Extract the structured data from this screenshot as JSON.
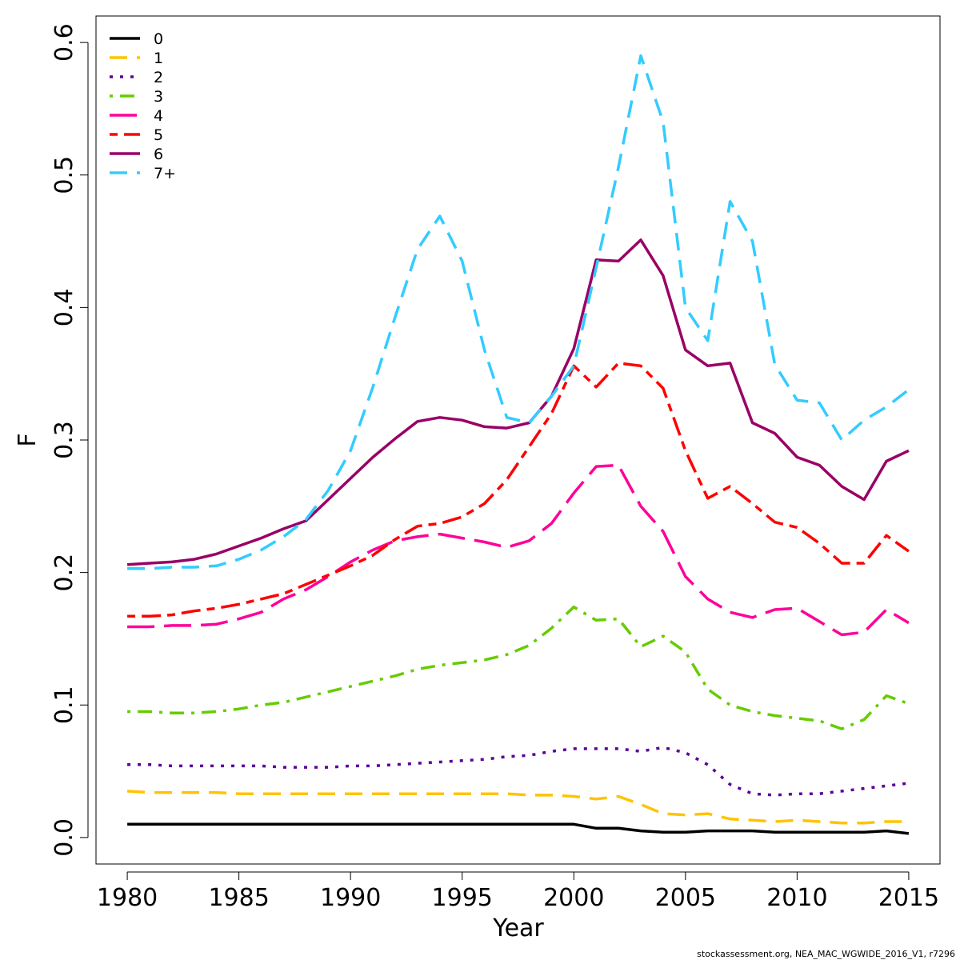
{
  "chart_data": {
    "type": "line",
    "xlabel": "Year",
    "ylabel": "F",
    "xlim": [
      1978.6,
      2016.4
    ],
    "ylim": [
      -0.02,
      0.62
    ],
    "xticks": [
      1980,
      1985,
      1990,
      1995,
      2000,
      2005,
      2010,
      2015
    ],
    "xtick_labels": [
      "1980",
      "1985",
      "1990",
      "1995",
      "2000",
      "2005",
      "2010",
      "2015"
    ],
    "yticks": [
      0.0,
      0.1,
      0.2,
      0.3,
      0.4,
      0.5,
      0.6
    ],
    "ytick_labels": [
      "0.0",
      "0.1",
      "0.2",
      "0.3",
      "0.4",
      "0.5",
      "0.6"
    ],
    "grid": false,
    "legend_position": "top-left",
    "x": [
      1980,
      1981,
      1982,
      1983,
      1984,
      1985,
      1986,
      1987,
      1988,
      1989,
      1990,
      1991,
      1992,
      1993,
      1994,
      1995,
      1996,
      1997,
      1998,
      1999,
      2000,
      2001,
      2002,
      2003,
      2004,
      2005,
      2006,
      2007,
      2008,
      2009,
      2010,
      2011,
      2012,
      2013,
      2014,
      2015
    ],
    "series": [
      {
        "name": "0",
        "color": "#000000",
        "dash": "solid",
        "values": [
          0.01,
          0.01,
          0.01,
          0.01,
          0.01,
          0.01,
          0.01,
          0.01,
          0.01,
          0.01,
          0.01,
          0.01,
          0.01,
          0.01,
          0.01,
          0.01,
          0.01,
          0.01,
          0.01,
          0.01,
          0.01,
          0.007,
          0.007,
          0.005,
          0.004,
          0.004,
          0.005,
          0.005,
          0.005,
          0.004,
          0.004,
          0.004,
          0.004,
          0.004,
          0.005,
          0.003
        ]
      },
      {
        "name": "1",
        "color": "#FFC300",
        "dash": "dashed",
        "values": [
          0.035,
          0.034,
          0.034,
          0.034,
          0.034,
          0.033,
          0.033,
          0.033,
          0.033,
          0.033,
          0.033,
          0.033,
          0.033,
          0.033,
          0.033,
          0.033,
          0.033,
          0.033,
          0.032,
          0.032,
          0.031,
          0.029,
          0.031,
          0.025,
          0.018,
          0.017,
          0.018,
          0.014,
          0.013,
          0.012,
          0.013,
          0.012,
          0.011,
          0.011,
          0.012,
          0.012
        ]
      },
      {
        "name": "2",
        "color": "#5A0099",
        "dash": "dotted",
        "values": [
          0.055,
          0.055,
          0.054,
          0.054,
          0.054,
          0.054,
          0.054,
          0.053,
          0.053,
          0.053,
          0.054,
          0.054,
          0.055,
          0.056,
          0.057,
          0.058,
          0.059,
          0.061,
          0.062,
          0.065,
          0.067,
          0.067,
          0.067,
          0.065,
          0.068,
          0.064,
          0.055,
          0.04,
          0.033,
          0.032,
          0.033,
          0.033,
          0.035,
          0.037,
          0.039,
          0.041
        ]
      },
      {
        "name": "3",
        "color": "#66CC00",
        "dash": "dotdash",
        "values": [
          0.095,
          0.095,
          0.094,
          0.094,
          0.095,
          0.097,
          0.1,
          0.102,
          0.106,
          0.11,
          0.114,
          0.118,
          0.122,
          0.127,
          0.13,
          0.132,
          0.134,
          0.138,
          0.145,
          0.158,
          0.174,
          0.164,
          0.165,
          0.144,
          0.152,
          0.14,
          0.112,
          0.1,
          0.095,
          0.092,
          0.09,
          0.088,
          0.082,
          0.089,
          0.107,
          0.101
        ]
      },
      {
        "name": "4",
        "color": "#FF0099",
        "dash": "longdash",
        "values": [
          0.159,
          0.159,
          0.16,
          0.16,
          0.161,
          0.165,
          0.17,
          0.18,
          0.187,
          0.197,
          0.208,
          0.217,
          0.224,
          0.227,
          0.229,
          0.226,
          0.223,
          0.219,
          0.224,
          0.237,
          0.26,
          0.28,
          0.281,
          0.25,
          0.231,
          0.197,
          0.18,
          0.17,
          0.166,
          0.172,
          0.173,
          0.163,
          0.153,
          0.155,
          0.172,
          0.162
        ]
      },
      {
        "name": "5",
        "color": "#FF0000",
        "dash": "twodash",
        "values": [
          0.167,
          0.167,
          0.168,
          0.171,
          0.173,
          0.176,
          0.18,
          0.184,
          0.191,
          0.198,
          0.205,
          0.213,
          0.225,
          0.235,
          0.237,
          0.242,
          0.252,
          0.27,
          0.295,
          0.32,
          0.356,
          0.34,
          0.358,
          0.356,
          0.339,
          0.292,
          0.256,
          0.265,
          0.252,
          0.238,
          0.234,
          0.222,
          0.207,
          0.207,
          0.228,
          0.216
        ]
      },
      {
        "name": "6",
        "color": "#990066",
        "dash": "solid",
        "values": [
          0.206,
          0.207,
          0.208,
          0.21,
          0.214,
          0.22,
          0.226,
          0.233,
          0.239,
          0.255,
          0.271,
          0.287,
          0.301,
          0.314,
          0.317,
          0.315,
          0.31,
          0.309,
          0.313,
          0.333,
          0.369,
          0.436,
          0.435,
          0.451,
          0.424,
          0.368,
          0.356,
          0.358,
          0.313,
          0.305,
          0.287,
          0.281,
          0.265,
          0.255,
          0.284,
          0.292
        ]
      },
      {
        "name": "7+",
        "color": "#33CCFF",
        "dash": "dashed",
        "values": [
          0.203,
          0.203,
          0.204,
          0.204,
          0.205,
          0.21,
          0.217,
          0.227,
          0.24,
          0.262,
          0.292,
          0.34,
          0.393,
          0.444,
          0.469,
          0.435,
          0.368,
          0.317,
          0.313,
          0.333,
          0.356,
          0.43,
          0.506,
          0.59,
          0.54,
          0.4,
          0.375,
          0.48,
          0.45,
          0.357,
          0.33,
          0.328,
          0.3,
          0.315,
          0.325,
          0.338
        ]
      }
    ]
  },
  "footer": "stockassessment.org, NEA_MAC_WGWIDE_2016_V1, r7296"
}
